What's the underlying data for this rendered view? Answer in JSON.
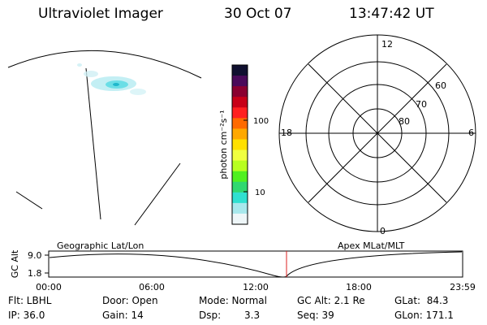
{
  "header": {
    "instrument": "Ultraviolet Imager",
    "date": "30 Oct 07",
    "time": "13:47:42 UT"
  },
  "colorbar": {
    "label": "photon cm⁻²s⁻¹",
    "ticks": [
      "100",
      "10"
    ],
    "colors": [
      "#101030",
      "#4a0a5a",
      "#8a0030",
      "#c80018",
      "#ff2020",
      "#ff6a00",
      "#ffa800",
      "#ffe000",
      "#f0ff40",
      "#b8ff20",
      "#50f020",
      "#30d870",
      "#30e0d0",
      "#a8e8ec",
      "#eef6f8"
    ]
  },
  "polar_plot": {
    "mlt_labels": {
      "top": "12",
      "bottom": "0",
      "left": "18",
      "right": "6"
    },
    "lat_labels": [
      "60",
      "70",
      "80"
    ]
  },
  "timeline": {
    "left_title": "Geographic Lat/Lon",
    "right_title": "Apex MLat/MLT",
    "yaxis_label": "GC Alt",
    "y_ticks": [
      "9.0",
      "1.8"
    ],
    "x_ticks": [
      "00:00",
      "06:00",
      "12:00",
      "18:00",
      "23:59"
    ],
    "marker_time": "13:47:42",
    "marker_color": "#dd2020"
  },
  "info": {
    "filter": "Flt: LBHL",
    "ip": "IP: 36.0",
    "door": "Door: Open",
    "gain": "Gain: 14",
    "mode": "Mode: Normal",
    "dsp_label": "Dsp:",
    "dsp_value": "3.3",
    "gc_alt": "GC Alt: 2.1 Re",
    "seq": "Seq: 39",
    "glat": "GLat:  84.3",
    "glon": "GLon: 171.1"
  }
}
